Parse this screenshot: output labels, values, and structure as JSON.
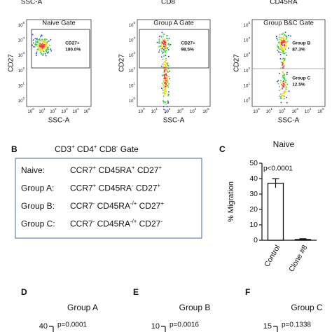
{
  "top_labels": [
    "SSC-A",
    "CD8",
    "CD45RA"
  ],
  "tick_base": "10",
  "axis_exponents": [
    "0",
    "1",
    "2",
    "3",
    "4",
    "5"
  ],
  "flow_plots": [
    {
      "title": "Naive Gate",
      "y_label": "CD27",
      "x_label": "SSC-A",
      "gates": [
        {
          "name": "CD27+",
          "percent": "100.0%"
        }
      ]
    },
    {
      "title": "Group A Gate",
      "y_label": "CD27",
      "x_label": "SSC-A",
      "gates": [
        {
          "name": "CD27+",
          "percent": "98.5%"
        }
      ]
    },
    {
      "title": "Group B&C Gate",
      "y_label": "CD27",
      "x_label": "SSC-A",
      "gates": [
        {
          "name": "Group B",
          "percent": "87.3%"
        },
        {
          "name": "Group C",
          "percent": "12.5%"
        }
      ]
    }
  ],
  "panel_b": {
    "letter": "B",
    "title": [
      {
        "name": "CD3",
        "sign": "+"
      },
      {
        "name": " CD4",
        "sign": "+"
      },
      {
        "name": " CD8",
        "sign": "-"
      },
      {
        "name": " Gate",
        "sign": ""
      }
    ],
    "rows": [
      {
        "label": "Naive:",
        "markers": [
          {
            "name": "CCR7",
            "sign": "+"
          },
          {
            "name": " CD45RA",
            "sign": "+"
          },
          {
            "name": " CD27",
            "sign": "+"
          }
        ]
      },
      {
        "label": "Group A:",
        "markers": [
          {
            "name": "CCR7",
            "sign": "+"
          },
          {
            "name": " CD45RA",
            "sign": "-"
          },
          {
            "name": " CD27",
            "sign": "+"
          }
        ]
      },
      {
        "label": "Group B:",
        "markers": [
          {
            "name": "CCR7",
            "sign": "-"
          },
          {
            "name": " CD45RA",
            "sign": "-/+"
          },
          {
            "name": " CD27",
            "sign": "+"
          }
        ]
      },
      {
        "label": "Group C:",
        "markers": [
          {
            "name": "CCR7",
            "sign": "-"
          },
          {
            "name": " CD45RA",
            "sign": "-/+"
          },
          {
            "name": " CD27",
            "sign": "-"
          }
        ]
      }
    ]
  },
  "chart_data": {
    "type": "bar",
    "letter": "C",
    "title": "Naive",
    "y_label": "% Migration",
    "annotation": "p<0.0001",
    "categories": [
      "Control",
      "Clone #8"
    ],
    "values": [
      37,
      0.5
    ],
    "errors": [
      3,
      0.5
    ],
    "color": "#ffffff",
    "ylim": [
      0,
      50
    ],
    "yticks": [
      0,
      10,
      20,
      30,
      40,
      50
    ]
  },
  "bottom_panels": [
    {
      "letter": "D",
      "title": "Group A",
      "top_tick": "40",
      "p": "p=0.0001"
    },
    {
      "letter": "E",
      "title": "Group B",
      "top_tick": "10",
      "p": "p=0.0016"
    },
    {
      "letter": "F",
      "title": "Group C",
      "top_tick": "15",
      "p": "p=0.1338"
    }
  ]
}
